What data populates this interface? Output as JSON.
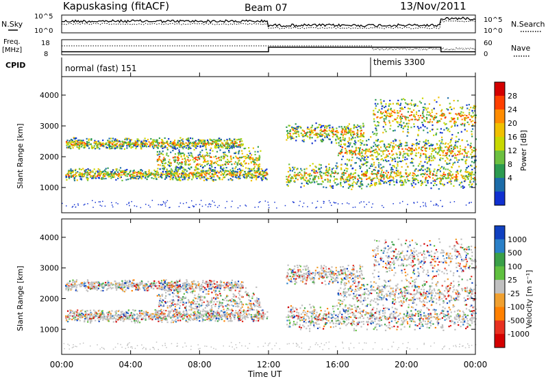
{
  "header": {
    "station": "Kapuskasing (fitACF)",
    "beam": "Beam 07",
    "date": "13/Nov/2011"
  },
  "chart_data": [
    {
      "type": "line",
      "panel": "noise",
      "left_label": "N.Sky",
      "right_label": "N.Search",
      "left_ticks": [
        "10^5",
        "10^0"
      ],
      "right_ticks": [
        "10^5",
        "10^0"
      ]
    },
    {
      "type": "line",
      "panel": "frequency",
      "left_label_line1": "Freq.",
      "left_label_line2": "[MHz]",
      "right_label": "Nave",
      "left_ticks": [
        "18",
        "8"
      ],
      "right_ticks": [
        "60",
        "0"
      ],
      "freq_segments": [
        {
          "start_hour": 0,
          "end_hour": 12.0,
          "mhz": 10
        },
        {
          "start_hour": 12.0,
          "end_hour": 22.0,
          "mhz": 13
        },
        {
          "start_hour": 22.0,
          "end_hour": 24.0,
          "mhz": 10
        }
      ]
    },
    {
      "type": "table",
      "panel": "cpid",
      "label": "CPID",
      "modes": [
        {
          "name": "normal (fast) 151",
          "start_hour": 0
        },
        {
          "name": "themis 3300",
          "start_hour": 18
        }
      ]
    },
    {
      "type": "heatmap",
      "panel": "power",
      "ylabel": "Slant Range [km]",
      "ylim": [
        180,
        4600
      ],
      "y_ticks": [
        1000,
        2000,
        3000,
        4000
      ],
      "colorbar_label": "Power [dB]",
      "colorbar_ticks": [
        28,
        24,
        20,
        16,
        12,
        8,
        4
      ],
      "colors": [
        "#d40000",
        "#ff4000",
        "#ff8c00",
        "#f0c000",
        "#c8d800",
        "#6cc040",
        "#2c9a50",
        "#1c6ca8",
        "#1030d0"
      ]
    },
    {
      "type": "heatmap",
      "panel": "velocity",
      "ylabel": "Slant Range [km]",
      "ylim": [
        180,
        4600
      ],
      "y_ticks": [
        1000,
        2000,
        3000,
        4000
      ],
      "colorbar_label": "Velocity [m s⁻¹]",
      "colorbar_ticks": [
        1000,
        500,
        100,
        25,
        -25,
        -100,
        -500,
        -1000
      ],
      "colors": [
        "#1040c0",
        "#2a80c8",
        "#3aa048",
        "#60c040",
        "#c0c0c0",
        "#f0a030",
        "#ff8000",
        "#e83020",
        "#d40000"
      ]
    }
  ],
  "x_axis": {
    "label": "Time UT",
    "ticks": [
      "00:00",
      "04:00",
      "08:00",
      "12:00",
      "16:00",
      "20:00",
      "00:00"
    ],
    "range_hours": [
      0,
      24
    ]
  }
}
